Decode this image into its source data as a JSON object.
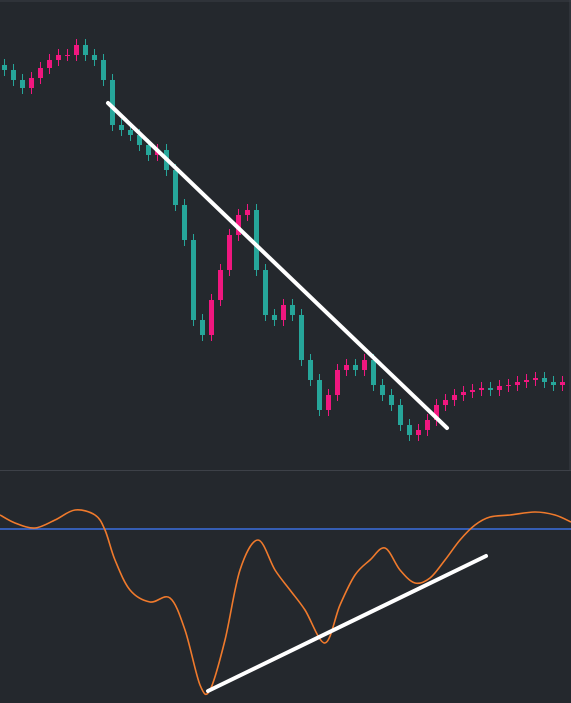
{
  "chart_data": [
    {
      "type": "candlestick",
      "up_color": "#f0177f",
      "down_color": "#26a69a",
      "ylim": [
        0,
        470
      ],
      "open": [
        405,
        400,
        390,
        382,
        392,
        402,
        410,
        415,
        415,
        425,
        415,
        410,
        390,
        345,
        340,
        335,
        325,
        315,
        320,
        300,
        265,
        230,
        150,
        135,
        170,
        200,
        235,
        255,
        260,
        200,
        155,
        150,
        165,
        155,
        110,
        90,
        60,
        75,
        100,
        105,
        100,
        110,
        85,
        75,
        65,
        45,
        35,
        40,
        50,
        65,
        70,
        75,
        78,
        80,
        82,
        80,
        84,
        85,
        88,
        90,
        92,
        88,
        85
      ],
      "high": [
        411,
        406,
        396,
        398,
        408,
        416,
        421,
        421,
        431,
        431,
        421,
        416,
        396,
        351,
        346,
        341,
        331,
        326,
        326,
        306,
        271,
        236,
        156,
        176,
        206,
        241,
        261,
        266,
        266,
        206,
        161,
        171,
        171,
        161,
        116,
        96,
        81,
        106,
        111,
        111,
        116,
        116,
        91,
        81,
        71,
        51,
        46,
        56,
        71,
        76,
        81,
        84,
        86,
        88,
        88,
        90,
        91,
        94,
        96,
        98,
        98,
        94,
        94
      ],
      "low": [
        394,
        384,
        376,
        376,
        386,
        396,
        404,
        409,
        409,
        409,
        404,
        384,
        339,
        334,
        329,
        319,
        309,
        309,
        294,
        259,
        224,
        144,
        129,
        129,
        164,
        194,
        229,
        249,
        194,
        149,
        144,
        144,
        149,
        104,
        84,
        54,
        54,
        69,
        94,
        94,
        94,
        79,
        69,
        59,
        39,
        29,
        29,
        34,
        44,
        59,
        64,
        69,
        72,
        74,
        74,
        74,
        78,
        79,
        82,
        84,
        82,
        79,
        79
      ],
      "close": [
        400,
        390,
        382,
        392,
        402,
        410,
        415,
        415,
        425,
        415,
        410,
        390,
        345,
        340,
        335,
        325,
        315,
        320,
        300,
        265,
        230,
        150,
        135,
        170,
        200,
        235,
        255,
        260,
        200,
        155,
        150,
        165,
        155,
        110,
        90,
        60,
        75,
        100,
        105,
        100,
        110,
        85,
        75,
        65,
        45,
        35,
        40,
        50,
        65,
        70,
        75,
        78,
        80,
        82,
        80,
        84,
        85,
        88,
        90,
        92,
        88,
        85,
        88
      ]
    },
    {
      "type": "line",
      "color": "#f07a2c",
      "level": 174,
      "level_color": "#3b6fe0",
      "xlim": [
        0,
        571
      ],
      "ylim": [
        0,
        232
      ],
      "x": [
        0,
        15,
        35,
        55,
        75,
        95,
        105,
        115,
        130,
        150,
        170,
        185,
        200,
        210,
        225,
        240,
        258,
        275,
        290,
        305,
        325,
        340,
        355,
        370,
        385,
        400,
        415,
        430,
        445,
        460,
        475,
        490,
        510,
        535,
        555,
        571
      ],
      "values": [
        188,
        180,
        175,
        183,
        193,
        188,
        173,
        143,
        113,
        101,
        105,
        73,
        18,
        13,
        63,
        133,
        163,
        133,
        113,
        93,
        60,
        98,
        128,
        143,
        155,
        133,
        120,
        125,
        143,
        163,
        178,
        186,
        188,
        191,
        188,
        181
      ]
    }
  ]
}
